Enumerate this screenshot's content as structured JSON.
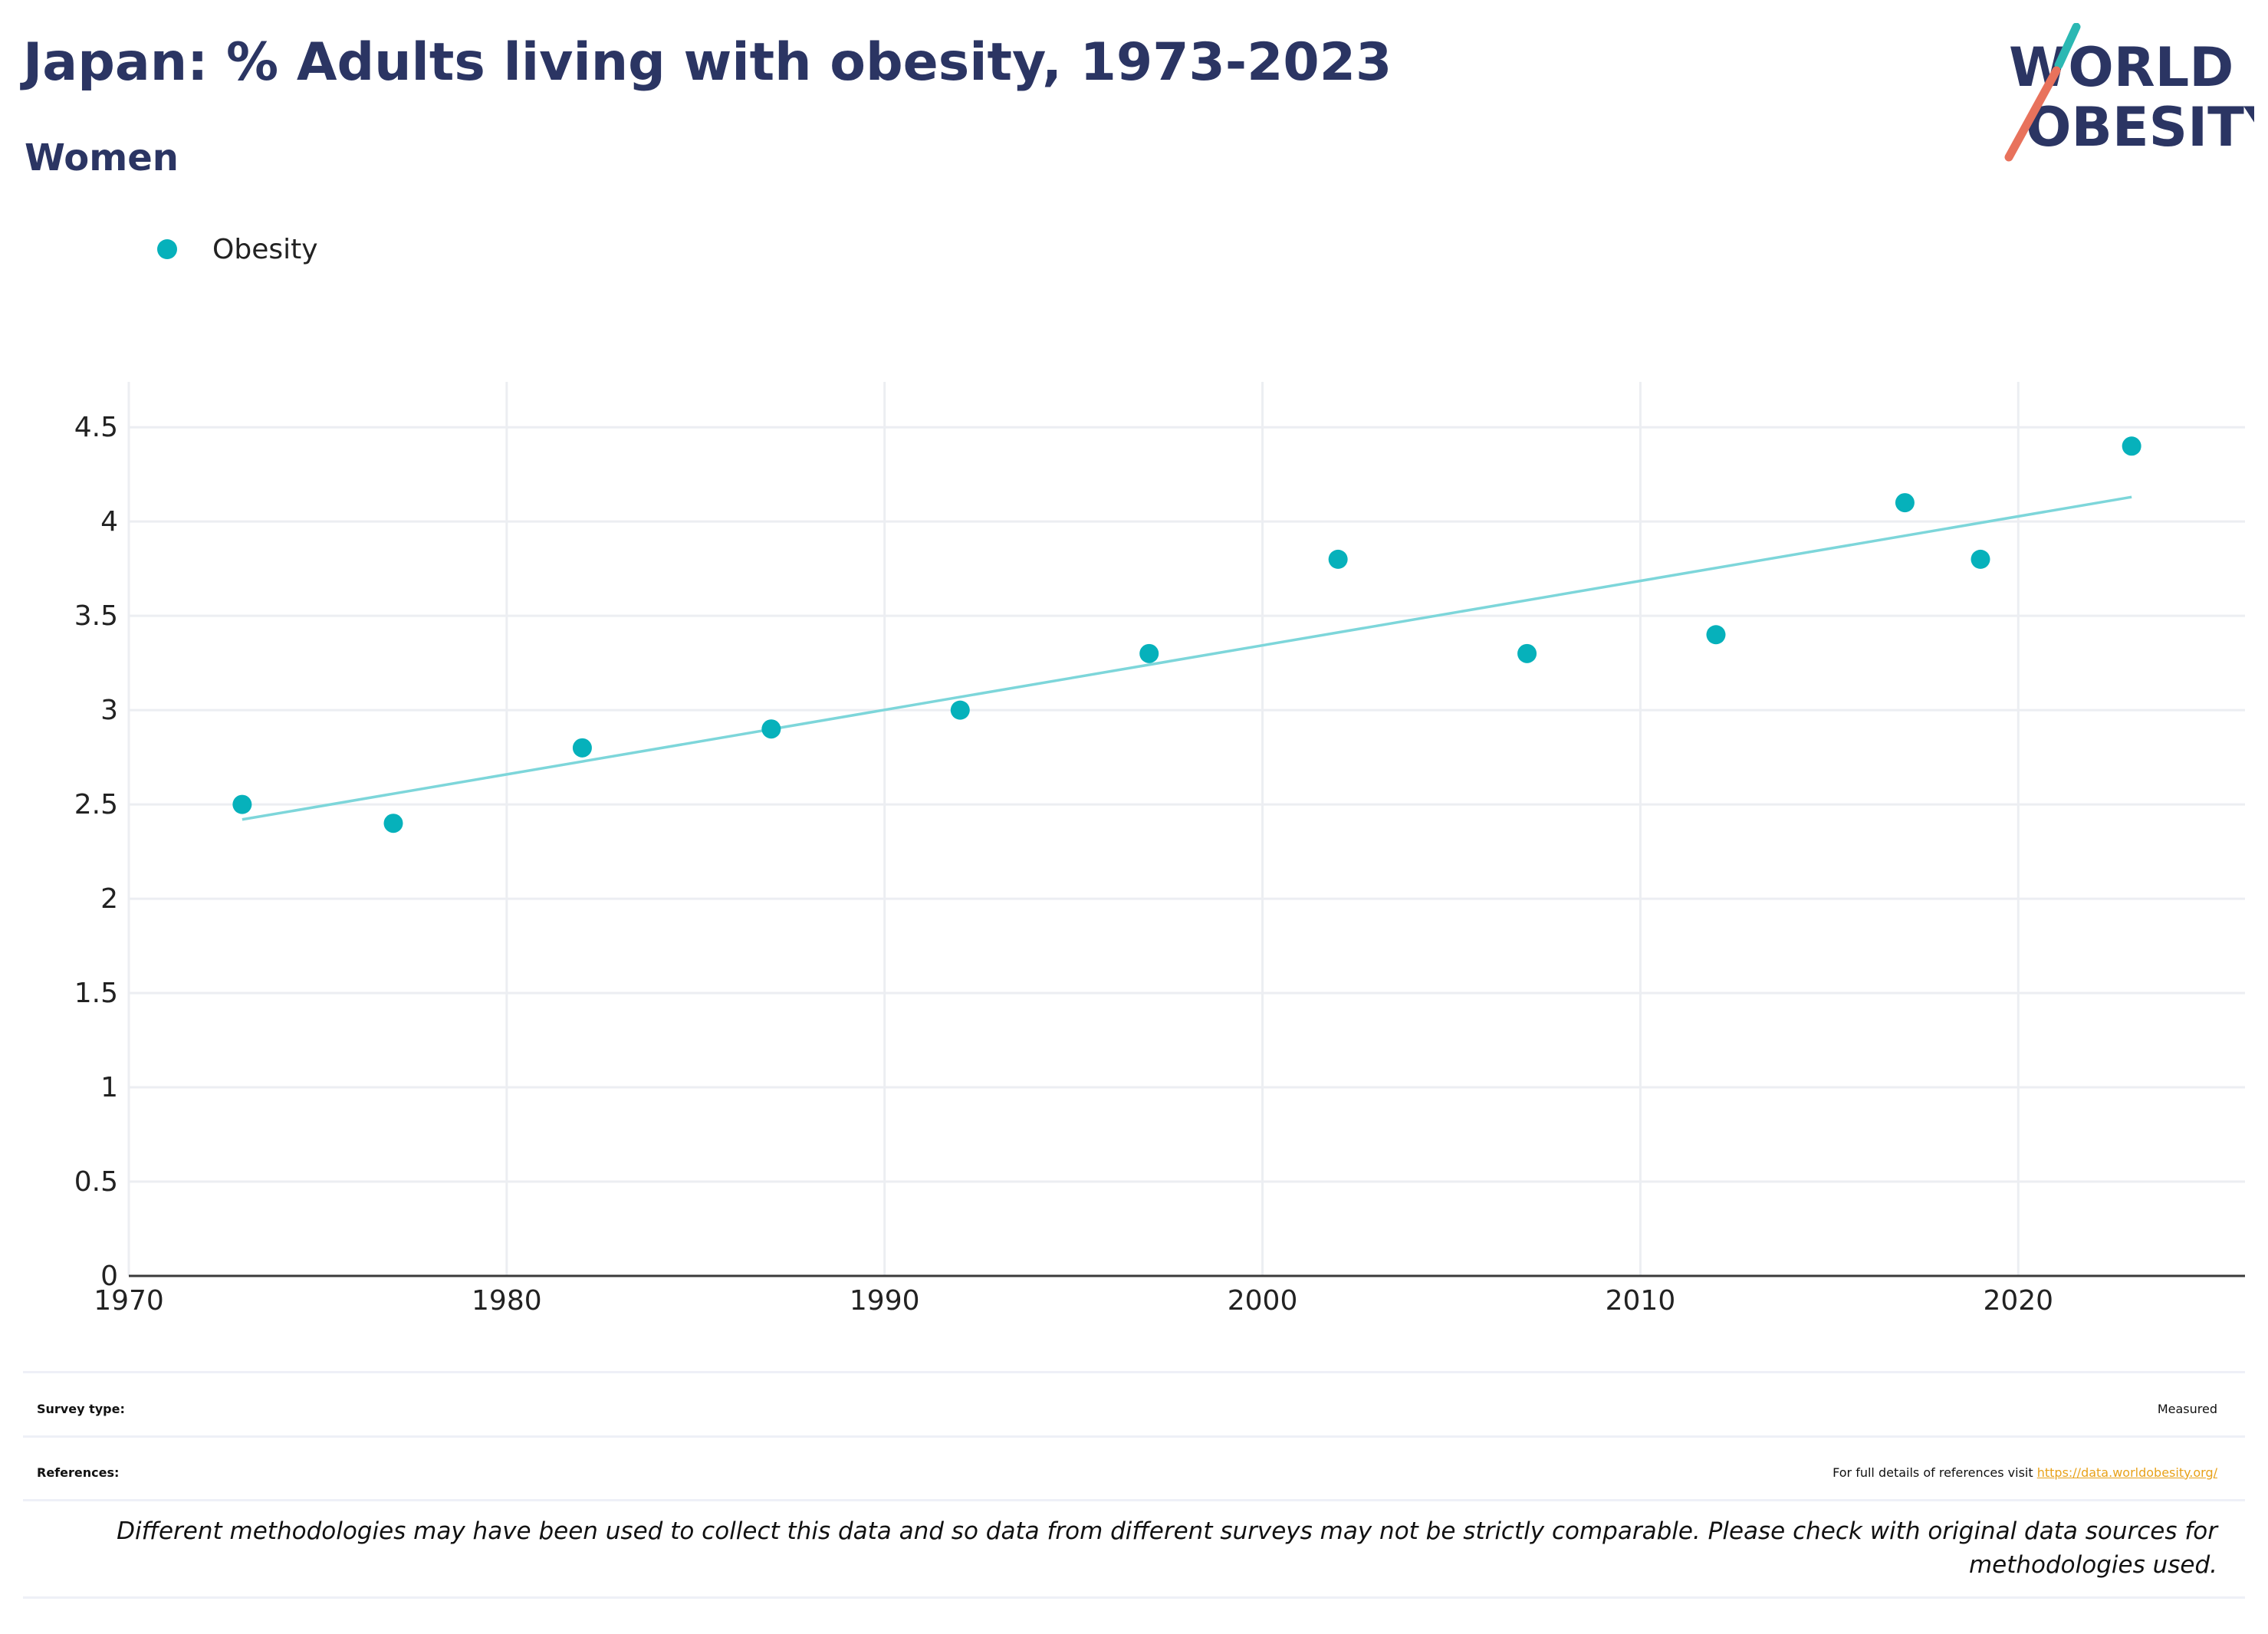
{
  "header": {
    "title": "Japan: % Adults living with obesity, 1973-2023",
    "subtitle": "Women"
  },
  "logo": {
    "line1": "WORLD",
    "line2": "OBESITY",
    "accent_teal": "#2bb8b3",
    "accent_coral": "#e8725c",
    "text_color": "#2b3563"
  },
  "legend": {
    "label": "Obesity",
    "color": "#06b1bb"
  },
  "chart_data": {
    "type": "scatter",
    "x": [
      1973,
      1977,
      1982,
      1987,
      1992,
      1997,
      2002,
      2007,
      2012,
      2017,
      2019,
      2023
    ],
    "series": [
      {
        "name": "Obesity",
        "color": "#06b1bb",
        "values": [
          2.5,
          2.4,
          2.8,
          2.9,
          3.0,
          3.3,
          3.8,
          3.3,
          3.4,
          4.1,
          3.8,
          4.4
        ]
      }
    ],
    "trendline": {
      "color": "#7dd6da",
      "x": [
        1973,
        2023
      ],
      "y": [
        2.42,
        4.13
      ]
    },
    "xlim": [
      1970,
      2026
    ],
    "ylim": [
      0,
      4.7
    ],
    "x_ticks": [
      1970,
      1980,
      1990,
      2000,
      2010,
      2020
    ],
    "y_ticks": [
      0,
      0.5,
      1,
      1.5,
      2,
      2.5,
      3,
      3.5,
      4,
      4.5
    ],
    "y_tick_labels": [
      "0",
      "0.5",
      "1",
      "1.5",
      "2",
      "2.5",
      "3",
      "3.5",
      "4",
      "4.5"
    ],
    "grid": true,
    "legend_position": "top-left"
  },
  "info": {
    "survey_type_label": "Survey type:",
    "survey_type_value": "Measured",
    "references_label": "References:",
    "references_text": "For full details of references visit ",
    "references_link": "https://data.worldobesity.org/",
    "disclaimer": "Different methodologies may have been used to collect this data and so data from different surveys may not be strictly comparable. Please check with original data sources for methodologies used."
  }
}
